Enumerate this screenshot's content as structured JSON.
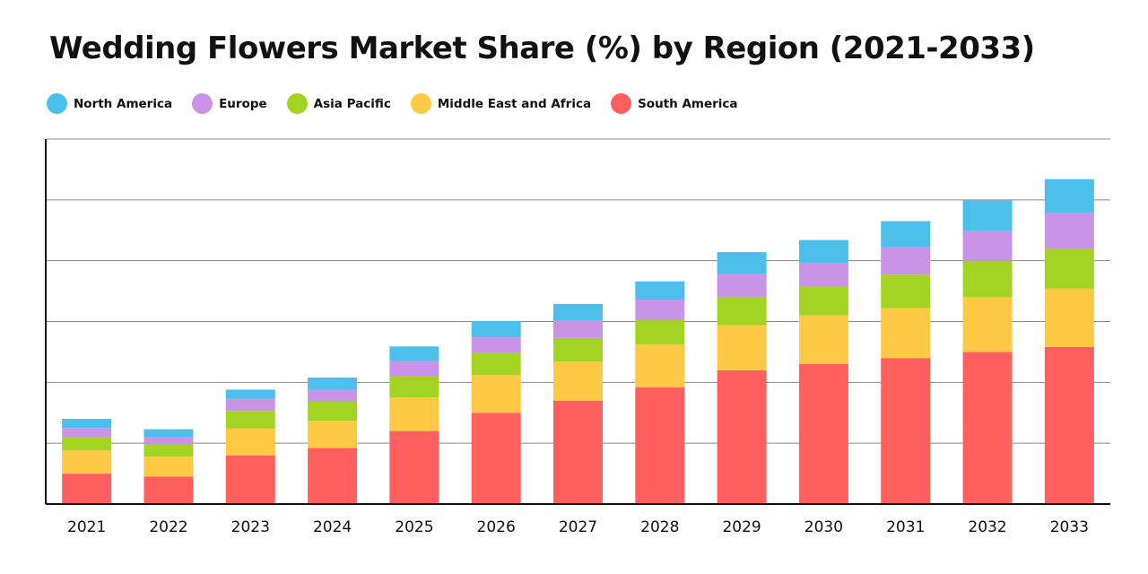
{
  "chart_data": {
    "type": "bar",
    "stacked": true,
    "title": "Wedding Flowers Market Share (%) by Region (2021-2033)",
    "xlabel": "",
    "ylabel": "",
    "ylim": [
      0,
      6
    ],
    "grid": true,
    "legend_position": "top-left",
    "categories": [
      "2021",
      "2022",
      "2023",
      "2024",
      "2025",
      "2026",
      "2027",
      "2028",
      "2029",
      "2030",
      "2031",
      "2032",
      "2033"
    ],
    "series": [
      {
        "name": "South America",
        "color": "#FF5F5F",
        "values": [
          0.5,
          0.45,
          0.8,
          0.92,
          1.2,
          1.5,
          1.7,
          1.92,
          2.2,
          2.3,
          2.4,
          2.5,
          2.58
        ]
      },
      {
        "name": "Middle East and Africa",
        "color": "#FFC845",
        "values": [
          0.38,
          0.33,
          0.44,
          0.45,
          0.55,
          0.62,
          0.64,
          0.7,
          0.74,
          0.8,
          0.82,
          0.9,
          0.96
        ]
      },
      {
        "name": "Asia Pacific",
        "color": "#A3D423",
        "values": [
          0.22,
          0.2,
          0.29,
          0.31,
          0.35,
          0.36,
          0.39,
          0.41,
          0.46,
          0.48,
          0.55,
          0.6,
          0.66
        ]
      },
      {
        "name": "Europe",
        "color": "#C994E6",
        "values": [
          0.15,
          0.12,
          0.2,
          0.2,
          0.25,
          0.26,
          0.28,
          0.33,
          0.38,
          0.38,
          0.45,
          0.49,
          0.58
        ]
      },
      {
        "name": "North America",
        "color": "#4CC0EA",
        "values": [
          0.15,
          0.13,
          0.15,
          0.2,
          0.24,
          0.27,
          0.28,
          0.3,
          0.36,
          0.38,
          0.43,
          0.5,
          0.56
        ]
      }
    ],
    "legend": [
      "North America",
      "Europe",
      "Asia Pacific",
      "Middle East and Africa",
      "South America"
    ]
  }
}
